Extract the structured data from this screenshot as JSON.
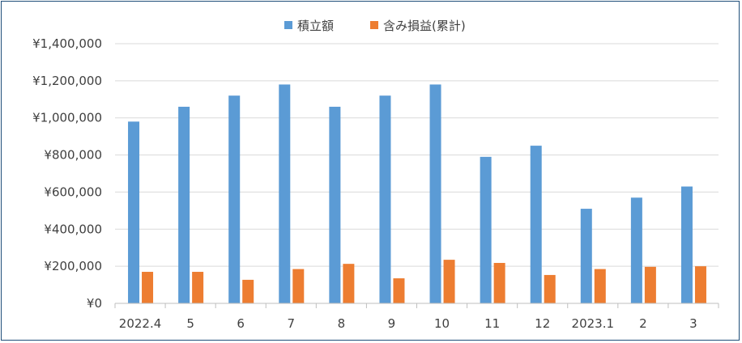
{
  "chart_data": {
    "type": "bar",
    "categories": [
      "2022.4",
      "5",
      "6",
      "7",
      "8",
      "9",
      "10",
      "11",
      "12",
      "2023.1",
      "2",
      "3"
    ],
    "series": [
      {
        "name": "積立額",
        "color": "#5b9bd5",
        "values": [
          980000,
          1060000,
          1120000,
          1180000,
          1060000,
          1120000,
          1180000,
          790000,
          850000,
          510000,
          570000,
          630000
        ]
      },
      {
        "name": "含み損益(累計)",
        "color": "#ed7d31",
        "values": [
          170000,
          170000,
          127000,
          185000,
          213000,
          135000,
          235000,
          218000,
          153000,
          185000,
          197000,
          200000
        ]
      }
    ],
    "ylim": [
      0,
      1400000
    ],
    "yticks": [
      0,
      200000,
      400000,
      600000,
      800000,
      1000000,
      1200000,
      1400000
    ],
    "ytick_labels": [
      "¥0",
      "¥200,000",
      "¥400,000",
      "¥600,000",
      "¥800,000",
      "¥1,000,000",
      "¥1,200,000",
      "¥1,400,000"
    ],
    "grid": true,
    "legend_position": "top-center",
    "title": "",
    "xlabel": "",
    "ylabel": ""
  }
}
